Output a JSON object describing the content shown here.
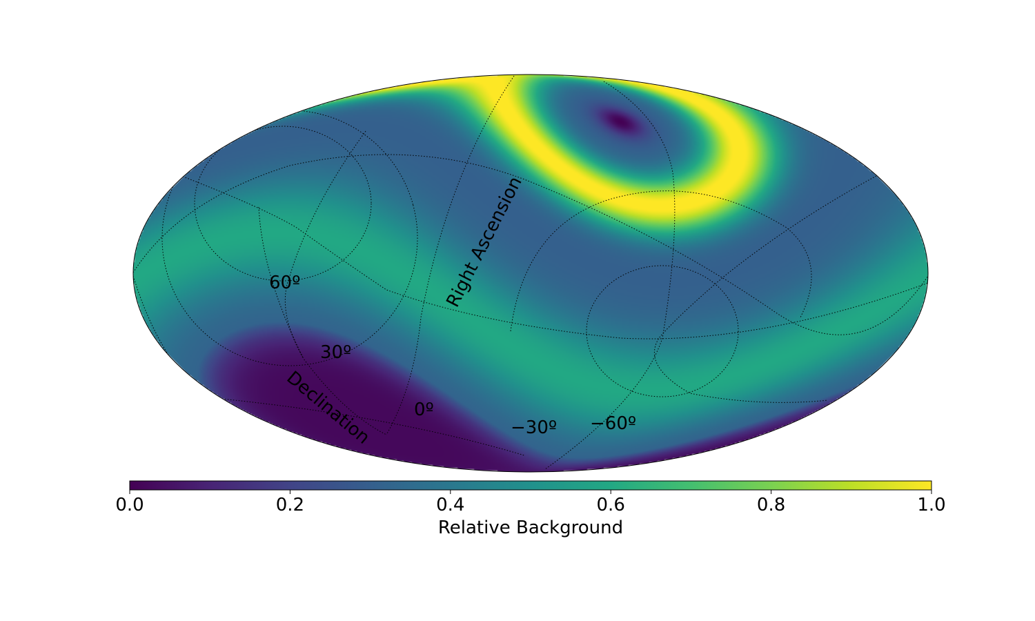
{
  "chart_data": {
    "type": "heatmap",
    "projection": "mollweide",
    "title": "",
    "grid": true,
    "grid_style": "dotted",
    "hot_spot": {
      "ra_deg": 117,
      "dec_deg": 60,
      "peak_ring_radius_deg": 35
    },
    "cold_spot": {
      "ra_deg": 297,
      "dec_deg": -60,
      "radius_deg": 45
    },
    "declination_labels": [
      "60º",
      "30º",
      "0º",
      "−30º",
      "−60º"
    ],
    "declination_axis_label": "Declination",
    "ra_axis_label": "Right Ascension",
    "colorbar": {
      "label": "Relative Background",
      "range": [
        0.0,
        1.0
      ],
      "ticks": [
        0.0,
        0.2,
        0.4,
        0.6,
        0.8,
        1.0
      ],
      "tick_labels": [
        "0.0",
        "0.2",
        "0.4",
        "0.6",
        "0.8",
        "1.0"
      ],
      "colormap": "viridis"
    }
  }
}
